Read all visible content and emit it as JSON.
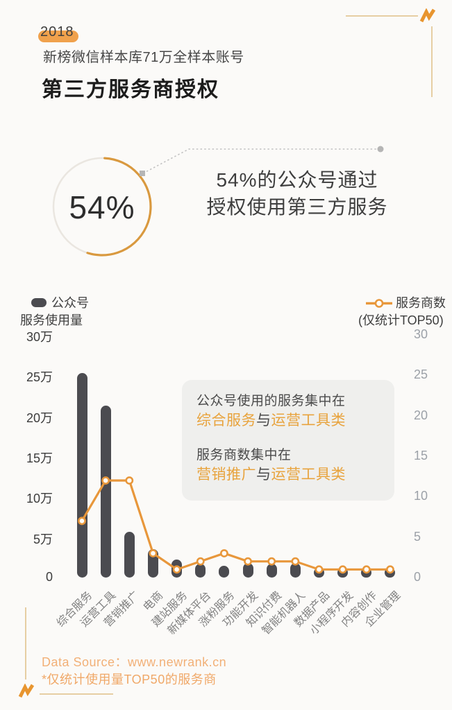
{
  "page": {
    "background": "#FBFAF8"
  },
  "header": {
    "year_badge": "2018",
    "subtitle": "新榜微信样本库71万全样本账号",
    "title": "第三方服务商授权"
  },
  "donut_section": {
    "percent_label": "54%",
    "percent_value": 54,
    "headline_line1": "54%的公众号通过",
    "headline_line2": "授权使用第三方服务"
  },
  "legend": {
    "bar_series_line1": "公众号",
    "bar_series_line2": "服务使用量",
    "line_series_line1": "服务商数",
    "line_series_line2": "(仅统计TOP50)"
  },
  "chart_data": {
    "type": "bar",
    "subtype": "dual-axis bar + line combo",
    "title": "第三方服务商授权",
    "categories": [
      "综合服务",
      "运营工具",
      "营销推广",
      "电商",
      "建站服务",
      "新媒体平台",
      "涨粉服务",
      "功能开发",
      "知识付费",
      "智能机器人",
      "数据产品",
      "小程序开发",
      "内容创作",
      "企业管理"
    ],
    "series": [
      {
        "name": "公众号服务使用量",
        "type": "bar",
        "axis": "left",
        "unit": "万",
        "color": "#4B4B50",
        "values": [
          25.3,
          21.3,
          5.7,
          3.5,
          2.2,
          1.7,
          1.5,
          1.8,
          1.7,
          1.8,
          1.2,
          1.2,
          1.2,
          1.2
        ]
      },
      {
        "name": "服务商数(仅统计TOP50)",
        "type": "line",
        "axis": "right",
        "color": "#E8973B",
        "values": [
          7,
          12,
          12,
          3,
          1,
          2,
          3,
          2,
          2,
          2,
          1,
          1,
          1,
          1
        ]
      }
    ],
    "left_axis": {
      "unit": "万",
      "min": 0,
      "max": 30,
      "ticks": [
        "30万",
        "25万",
        "20万",
        "15万",
        "10万",
        "5万",
        "0"
      ]
    },
    "right_axis": {
      "min": 0,
      "max": 30,
      "ticks": [
        "30",
        "25",
        "20",
        "15",
        "10",
        "5",
        "0"
      ]
    },
    "grid": false,
    "legend_position": "top"
  },
  "annotation": {
    "line1": "公众号使用的服务集中在",
    "line2": [
      {
        "text": "综合服务",
        "color": "orange"
      },
      {
        "text": "与",
        "color": "dark"
      },
      {
        "text": "运营工具类",
        "color": "orange"
      }
    ],
    "line3": "服务商数集中在",
    "line4": [
      {
        "text": "营销推广",
        "color": "orange"
      },
      {
        "text": "与",
        "color": "dark"
      },
      {
        "text": "运营工具类",
        "color": "orange"
      }
    ]
  },
  "footer": {
    "source": "Data Source：www.newrank.cn",
    "note": "*仅统计使用量TOP50的服务商"
  },
  "colors": {
    "accent_orange": "#E8973B",
    "year_highlight": "#F0A14C",
    "bar_gray": "#4B4B50",
    "donut_arc": "#D9993F",
    "donut_track": "#EAE6E0",
    "annotation_bg": "#EFEFED",
    "annotation_orange": "#E8A33D",
    "footer_orange": "#F2B077",
    "frame_tan": "#E6CEA3",
    "leader_gray": "#C2C2C2",
    "left_tick_gray": "#3C3C3C",
    "right_tick_gray": "#9CA1A8"
  }
}
